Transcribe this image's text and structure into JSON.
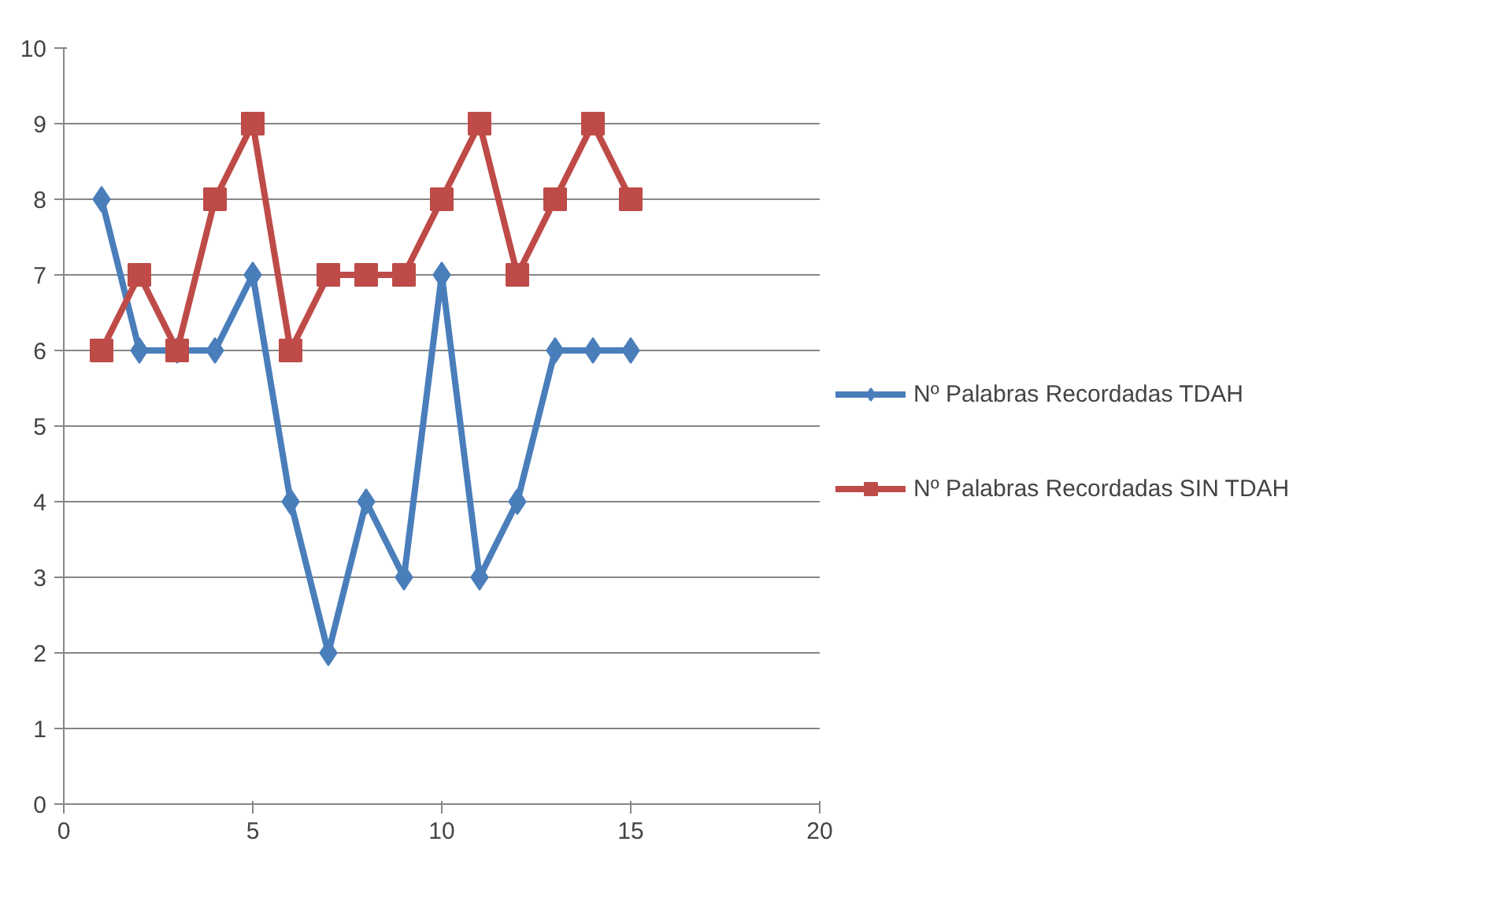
{
  "chart_data": {
    "type": "line",
    "x": [
      1,
      2,
      3,
      4,
      5,
      6,
      7,
      8,
      9,
      10,
      11,
      12,
      13,
      14,
      15
    ],
    "series": [
      {
        "name": "Nº Palabras Recordadas TDAH",
        "color": "#4a7ebb",
        "marker": "diamond",
        "values": [
          8,
          6,
          6,
          6,
          7,
          4,
          2,
          4,
          3,
          7,
          3,
          4,
          6,
          6,
          6
        ]
      },
      {
        "name": "Nº Palabras Recordadas SIN TDAH",
        "color": "#be4b48",
        "marker": "square",
        "values": [
          6,
          7,
          6,
          8,
          9,
          6,
          7,
          7,
          7,
          8,
          9,
          7,
          8,
          9,
          8
        ]
      }
    ],
    "xlim": [
      0,
      20
    ],
    "xticks": [
      0,
      5,
      10,
      15,
      20
    ],
    "ylim": [
      0,
      10
    ],
    "yticks": [
      0,
      1,
      2,
      3,
      4,
      5,
      6,
      7,
      8,
      9,
      10
    ],
    "grid": "y",
    "legend": "right",
    "line_style": "solid"
  }
}
